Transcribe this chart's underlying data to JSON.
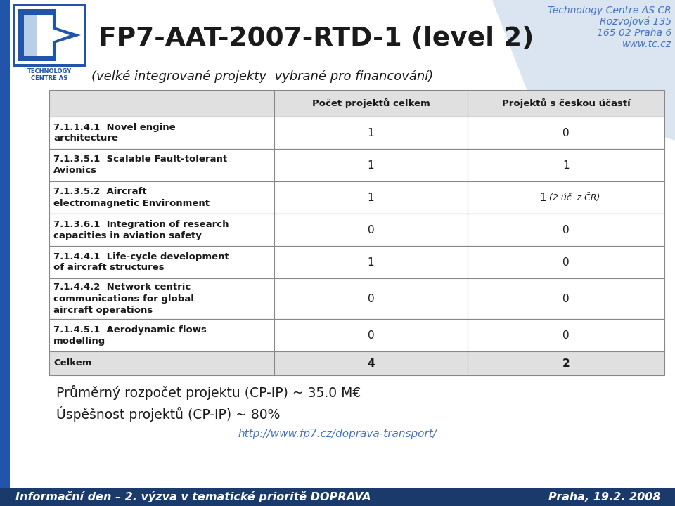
{
  "title": "FP7-AAT-2007-RTD-1 (level 2)",
  "subtitle": "(velké integrované projekty  vybrané pro financování)",
  "top_right_lines": [
    "Technology Centre AS CR",
    "Rozvojová 135",
    "165 02 Praha 6",
    "www.tc.cz"
  ],
  "col_headers": [
    "Počet projektů celkem",
    "Projektů s českou účastí"
  ],
  "rows": [
    {
      "label": "7.1.1.4.1  Novel engine\narchitecture",
      "col1": "1",
      "col2": "0"
    },
    {
      "label": "7.1.3.5.1  Scalable Fault-tolerant\nAvionics",
      "col1": "1",
      "col2": "1"
    },
    {
      "label": "7.1.3.5.2  Aircraft\nelectromagnetic Environment",
      "col1": "1",
      "col2": "1 (2 úč. z ČR)"
    },
    {
      "label": "7.1.3.6.1  Integration of research\ncapacities in aviation safety",
      "col1": "0",
      "col2": "0"
    },
    {
      "label": "7.1.4.4.1  Life-cycle development\nof aircraft structures",
      "col1": "1",
      "col2": "0"
    },
    {
      "label": "7.1.4.4.2  Network centric\ncommunications for global\naircraft operations",
      "col1": "0",
      "col2": "0"
    },
    {
      "label": "7.1.4.5.1  Aerodynamic flows\nmodelling",
      "col1": "0",
      "col2": "0"
    },
    {
      "label": "Celkem",
      "col1": "4",
      "col2": "2",
      "bold": true
    }
  ],
  "footer_lines": [
    "Průměrný rozpočet projektu (CP-IP) ~ 35.0 M€",
    "Úspěšnost projektů (CP-IP) ~ 80%"
  ],
  "footer_link": "http://www.fp7.cz/doprava-transport/",
  "bottom_left": "Informační den – 2. výzva v tematické prioritě DOPRAVA",
  "bottom_right": "Praha, 19.2. 2008",
  "bg_color": "#ffffff",
  "table_border": "#888888",
  "bottom_bar_color": "#1a3a6b",
  "link_color": "#4472c4",
  "top_right_color": "#4472c4",
  "logo_blue": "#2255aa",
  "logo_light_blue": "#8ab0d8"
}
